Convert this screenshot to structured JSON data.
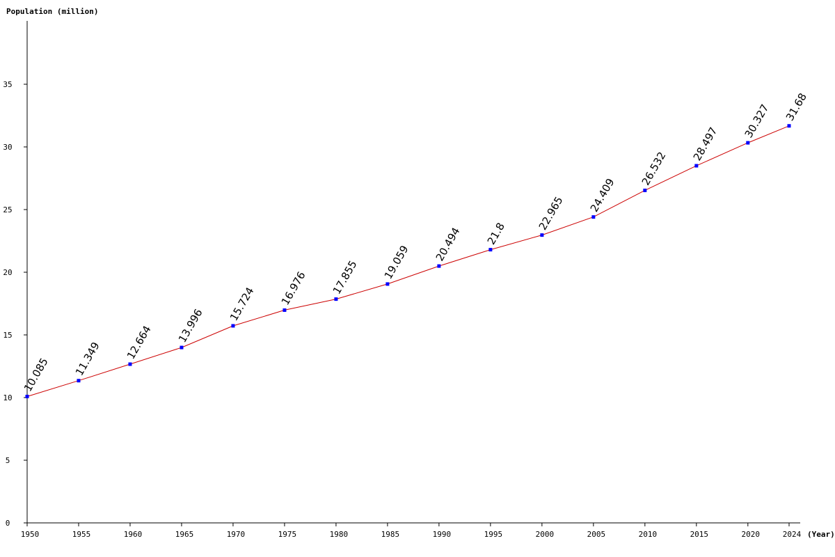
{
  "chart_data": {
    "type": "line",
    "ylabel": "Population (million)",
    "xlabel": "(Year)",
    "ylim": [
      0,
      40
    ],
    "yticks": [
      0,
      5,
      10,
      15,
      20,
      25,
      30,
      35
    ],
    "x": [
      1950,
      1955,
      1960,
      1965,
      1970,
      1975,
      1980,
      1985,
      1990,
      1995,
      2000,
      2005,
      2010,
      2015,
      2020,
      2024
    ],
    "series": [
      {
        "values": [
          10.085,
          11.349,
          12.664,
          13.996,
          15.724,
          16.976,
          17.855,
          19.059,
          20.494,
          21.8,
          22.965,
          24.409,
          26.532,
          28.497,
          30.327,
          31.68
        ],
        "labels": [
          "10.085",
          "11.349",
          "12.664",
          "13.996",
          "15.724",
          "16.976",
          "17.855",
          "19.059",
          "20.494",
          "21.8",
          "22.965",
          "24.409",
          "26.532",
          "28.497",
          "30.327",
          "31.68"
        ]
      }
    ],
    "line_color": "#cc0000",
    "marker_color": "#0000ff",
    "grid": false
  }
}
